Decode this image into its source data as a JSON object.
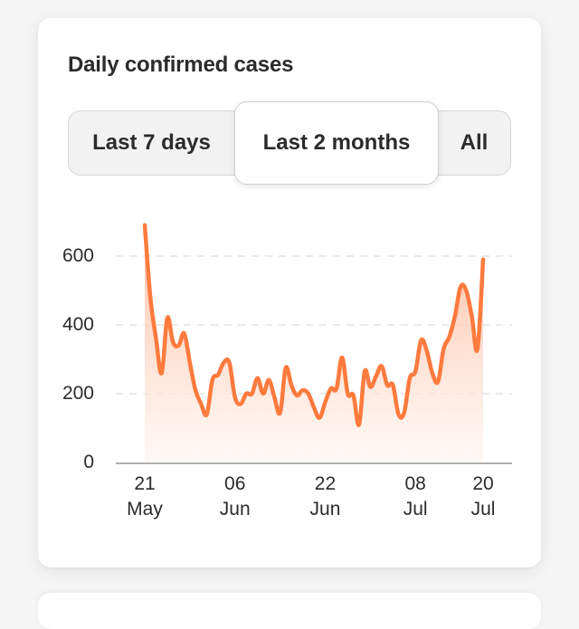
{
  "card": {
    "title": "Daily confirmed cases"
  },
  "range_selector": {
    "options": [
      {
        "label": "Last 7 days",
        "active": false
      },
      {
        "label": "Last 2 months",
        "active": true
      },
      {
        "label": "All",
        "active": false
      }
    ]
  },
  "colors": {
    "line": "#ff7a3d",
    "fill_top": "#ffb899",
    "fill_bottom": "#fff4ee",
    "grid": "#e4e4e4",
    "axis": "#b0b0b0",
    "text": "#2b2b2b"
  },
  "chart_data": {
    "type": "area",
    "title": "Daily confirmed cases",
    "xlabel": "",
    "ylabel": "",
    "ylim": [
      0,
      600
    ],
    "yticks": [
      0,
      200,
      400,
      600
    ],
    "grid": true,
    "grid_style": "dashed horizontal",
    "legend": "none",
    "x_start": "21 May",
    "x_end": "20 Jul",
    "xticks": [
      {
        "day": 0,
        "line1": "21",
        "line2": "May"
      },
      {
        "day": 16,
        "line1": "06",
        "line2": "Jun"
      },
      {
        "day": 32,
        "line1": "22",
        "line2": "Jun"
      },
      {
        "day": 48,
        "line1": "08",
        "line2": "Jul"
      },
      {
        "day": 60,
        "line1": "20",
        "line2": "Jul"
      }
    ],
    "series": [
      {
        "name": "Daily confirmed cases",
        "values": [
          690,
          480,
          360,
          260,
          420,
          350,
          340,
          375,
          290,
          210,
          170,
          140,
          240,
          255,
          290,
          290,
          190,
          170,
          200,
          200,
          245,
          200,
          240,
          190,
          145,
          275,
          225,
          195,
          210,
          200,
          160,
          130,
          175,
          215,
          215,
          305,
          200,
          195,
          110,
          265,
          220,
          250,
          280,
          225,
          225,
          140,
          145,
          245,
          265,
          355,
          325,
          260,
          235,
          330,
          365,
          425,
          510,
          500,
          425,
          330,
          590
        ]
      }
    ]
  }
}
